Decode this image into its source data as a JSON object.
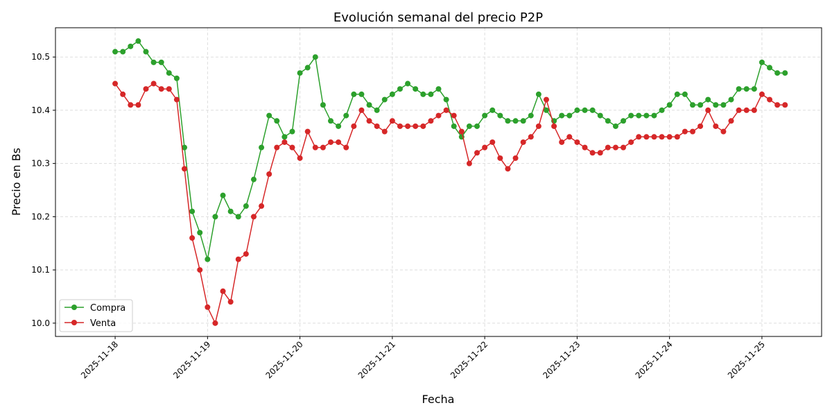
{
  "chart_data": {
    "type": "line",
    "title": "Evolución semanal del precio P2P",
    "xlabel": "Fecha",
    "ylabel": "Precio en Bs",
    "ylim": [
      9.975,
      10.555
    ],
    "xlim": [
      "2025-11-17 08:30",
      "2025-11-25 15:30"
    ],
    "yticks": [
      10.0,
      10.1,
      10.2,
      10.3,
      10.4,
      10.5
    ],
    "xticks": [
      "2025-11-18",
      "2025-11-19",
      "2025-11-20",
      "2025-11-21",
      "2025-11-22",
      "2025-11-23",
      "2025-11-24",
      "2025-11-25"
    ],
    "grid": true,
    "legend_position": "lower-left",
    "x": [
      "2025-11-18 00:00",
      "2025-11-18 02:00",
      "2025-11-18 04:00",
      "2025-11-18 06:00",
      "2025-11-18 08:00",
      "2025-11-18 10:00",
      "2025-11-18 12:00",
      "2025-11-18 14:00",
      "2025-11-18 16:00",
      "2025-11-18 18:00",
      "2025-11-18 20:00",
      "2025-11-18 22:00",
      "2025-11-19 00:00",
      "2025-11-19 02:00",
      "2025-11-19 04:00",
      "2025-11-19 06:00",
      "2025-11-19 08:00",
      "2025-11-19 10:00",
      "2025-11-19 12:00",
      "2025-11-19 14:00",
      "2025-11-19 16:00",
      "2025-11-19 18:00",
      "2025-11-19 20:00",
      "2025-11-19 22:00",
      "2025-11-20 00:00",
      "2025-11-20 02:00",
      "2025-11-20 04:00",
      "2025-11-20 06:00",
      "2025-11-20 08:00",
      "2025-11-20 10:00",
      "2025-11-20 12:00",
      "2025-11-20 14:00",
      "2025-11-20 16:00",
      "2025-11-20 18:00",
      "2025-11-20 20:00",
      "2025-11-20 22:00",
      "2025-11-21 00:00",
      "2025-11-21 02:00",
      "2025-11-21 04:00",
      "2025-11-21 06:00",
      "2025-11-21 08:00",
      "2025-11-21 10:00",
      "2025-11-21 12:00",
      "2025-11-21 14:00",
      "2025-11-21 16:00",
      "2025-11-21 18:00",
      "2025-11-21 20:00",
      "2025-11-21 22:00",
      "2025-11-22 00:00",
      "2025-11-22 02:00",
      "2025-11-22 04:00",
      "2025-11-22 06:00",
      "2025-11-22 08:00",
      "2025-11-22 10:00",
      "2025-11-22 12:00",
      "2025-11-22 14:00",
      "2025-11-22 16:00",
      "2025-11-22 18:00",
      "2025-11-22 20:00",
      "2025-11-22 22:00",
      "2025-11-23 00:00",
      "2025-11-23 02:00",
      "2025-11-23 04:00",
      "2025-11-23 06:00",
      "2025-11-23 08:00",
      "2025-11-23 10:00",
      "2025-11-23 12:00",
      "2025-11-23 14:00",
      "2025-11-23 16:00",
      "2025-11-23 18:00",
      "2025-11-23 20:00",
      "2025-11-23 22:00",
      "2025-11-24 00:00",
      "2025-11-24 02:00",
      "2025-11-24 04:00",
      "2025-11-24 06:00",
      "2025-11-24 08:00",
      "2025-11-24 10:00",
      "2025-11-24 12:00",
      "2025-11-24 14:00",
      "2025-11-24 16:00",
      "2025-11-24 18:00",
      "2025-11-24 20:00",
      "2025-11-24 22:00",
      "2025-11-25 00:00",
      "2025-11-25 02:00",
      "2025-11-25 04:00",
      "2025-11-25 06:00"
    ],
    "series": [
      {
        "name": "Compra",
        "color": "#2ca02c",
        "values": [
          10.51,
          10.51,
          10.52,
          10.53,
          10.51,
          10.49,
          10.49,
          10.47,
          10.46,
          10.33,
          10.21,
          10.17,
          10.12,
          10.2,
          10.24,
          10.21,
          10.2,
          10.22,
          10.27,
          10.33,
          10.39,
          10.38,
          10.35,
          10.36,
          10.47,
          10.48,
          10.5,
          10.41,
          10.38,
          10.37,
          10.39,
          10.43,
          10.43,
          10.41,
          10.4,
          10.42,
          10.43,
          10.44,
          10.45,
          10.44,
          10.43,
          10.43,
          10.44,
          10.42,
          10.37,
          10.35,
          10.37,
          10.37,
          10.39,
          10.4,
          10.39,
          10.38,
          10.38,
          10.38,
          10.39,
          10.43,
          10.4,
          10.38,
          10.39,
          10.39,
          10.4,
          10.4,
          10.4,
          10.39,
          10.38,
          10.37,
          10.38,
          10.39,
          10.39,
          10.39,
          10.39,
          10.4,
          10.41,
          10.43,
          10.43,
          10.41,
          10.41,
          10.42,
          10.41,
          10.41,
          10.42,
          10.44,
          10.44,
          10.44,
          10.49,
          10.48,
          10.47,
          10.47
        ]
      },
      {
        "name": "Venta",
        "color": "#d62728",
        "values": [
          10.45,
          10.43,
          10.41,
          10.41,
          10.44,
          10.45,
          10.44,
          10.44,
          10.42,
          10.29,
          10.16,
          10.1,
          10.03,
          10.0,
          10.06,
          10.04,
          10.12,
          10.13,
          10.2,
          10.22,
          10.28,
          10.33,
          10.34,
          10.33,
          10.31,
          10.36,
          10.33,
          10.33,
          10.34,
          10.34,
          10.33,
          10.37,
          10.4,
          10.38,
          10.37,
          10.36,
          10.38,
          10.37,
          10.37,
          10.37,
          10.37,
          10.38,
          10.39,
          10.4,
          10.39,
          10.36,
          10.3,
          10.32,
          10.33,
          10.34,
          10.31,
          10.29,
          10.31,
          10.34,
          10.35,
          10.37,
          10.42,
          10.37,
          10.34,
          10.35,
          10.34,
          10.33,
          10.32,
          10.32,
          10.33,
          10.33,
          10.33,
          10.34,
          10.35,
          10.35,
          10.35,
          10.35,
          10.35,
          10.35,
          10.36,
          10.36,
          10.37,
          10.4,
          10.37,
          10.36,
          10.38,
          10.4,
          10.4,
          10.4,
          10.43,
          10.42,
          10.41,
          10.41
        ]
      }
    ]
  }
}
